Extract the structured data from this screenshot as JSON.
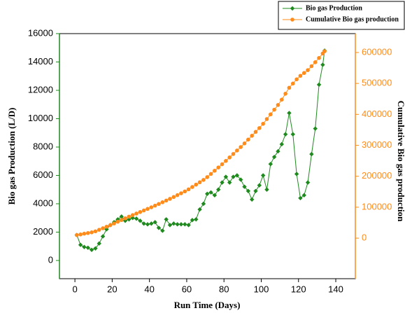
{
  "chart_data": {
    "type": "line",
    "x_label": "Run Time (Days)",
    "y_label": "Bio gas Production (L/D)",
    "y2_label": "Cumulative Bio gas production",
    "x": [
      1,
      3,
      5,
      7,
      9,
      11,
      13,
      15,
      17,
      19,
      21,
      23,
      25,
      27,
      29,
      31,
      33,
      35,
      37,
      39,
      41,
      43,
      45,
      47,
      49,
      51,
      53,
      55,
      57,
      59,
      61,
      63,
      65,
      67,
      69,
      71,
      73,
      75,
      77,
      79,
      81,
      83,
      85,
      87,
      89,
      91,
      93,
      95,
      97,
      99,
      101,
      103,
      105,
      107,
      109,
      111,
      113,
      115,
      117,
      119,
      121,
      123,
      125,
      127,
      129,
      131,
      133,
      134
    ],
    "series": [
      {
        "name": "Bio gas Production",
        "color": "#1e8a1e",
        "marker": "diamond",
        "values": [
          1800,
          1100,
          950,
          900,
          750,
          850,
          1200,
          1700,
          2200,
          2500,
          2700,
          2900,
          3100,
          2800,
          2900,
          3000,
          2950,
          2800,
          2600,
          2550,
          2600,
          2700,
          2300,
          2100,
          2900,
          2500,
          2600,
          2550,
          2550,
          2550,
          2500,
          2850,
          2900,
          3600,
          4000,
          4700,
          4800,
          4600,
          5000,
          5500,
          5900,
          5500,
          5900,
          6000,
          5700,
          5200,
          4900,
          4300,
          4900,
          5300,
          6000,
          5000,
          6800,
          7300,
          7700,
          8200,
          8900,
          10400,
          8900,
          6100,
          4400,
          4600,
          5500,
          7500,
          9300,
          12400,
          13800,
          14800
        ]
      },
      {
        "name": "Cumulative Bio gas production",
        "color": "#ff8c1a",
        "marker": "circle",
        "axis": "y2",
        "values": [
          10000,
          12000,
          14500,
          16500,
          18800,
          22000,
          27000,
          32000,
          37000,
          42000,
          47500,
          53000,
          58500,
          64000,
          69500,
          74500,
          79500,
          84500,
          89500,
          94500,
          99700,
          105000,
          110500,
          116000,
          121500,
          127000,
          133000,
          139000,
          145000,
          151000,
          157800,
          165400,
          173000,
          180600,
          188200,
          197200,
          207600,
          218000,
          228400,
          238800,
          249600,
          260800,
          272000,
          283200,
          294400,
          306200,
          318600,
          331000,
          343400,
          355800,
          369600,
          384800,
          400000,
          415200,
          430400,
          447600,
          466800,
          486000,
          499600,
          513200,
          524600,
          533800,
          543000,
          555800,
          568600,
          582200,
          596800,
          604000
        ]
      }
    ],
    "xlim": [
      -8.3,
      150.5
    ],
    "xticks": [
      0,
      20,
      40,
      60,
      80,
      100,
      120,
      140
    ],
    "ylim": [
      -1284,
      16000
    ],
    "yticks": [
      0,
      2000,
      4000,
      6000,
      8000,
      10000,
      12000,
      14000,
      16000
    ],
    "y2lim": [
      -131000,
      661000
    ],
    "y2ticks": [
      0,
      100000,
      200000,
      300000,
      400000,
      500000,
      600000
    ],
    "legend": "top-right"
  }
}
